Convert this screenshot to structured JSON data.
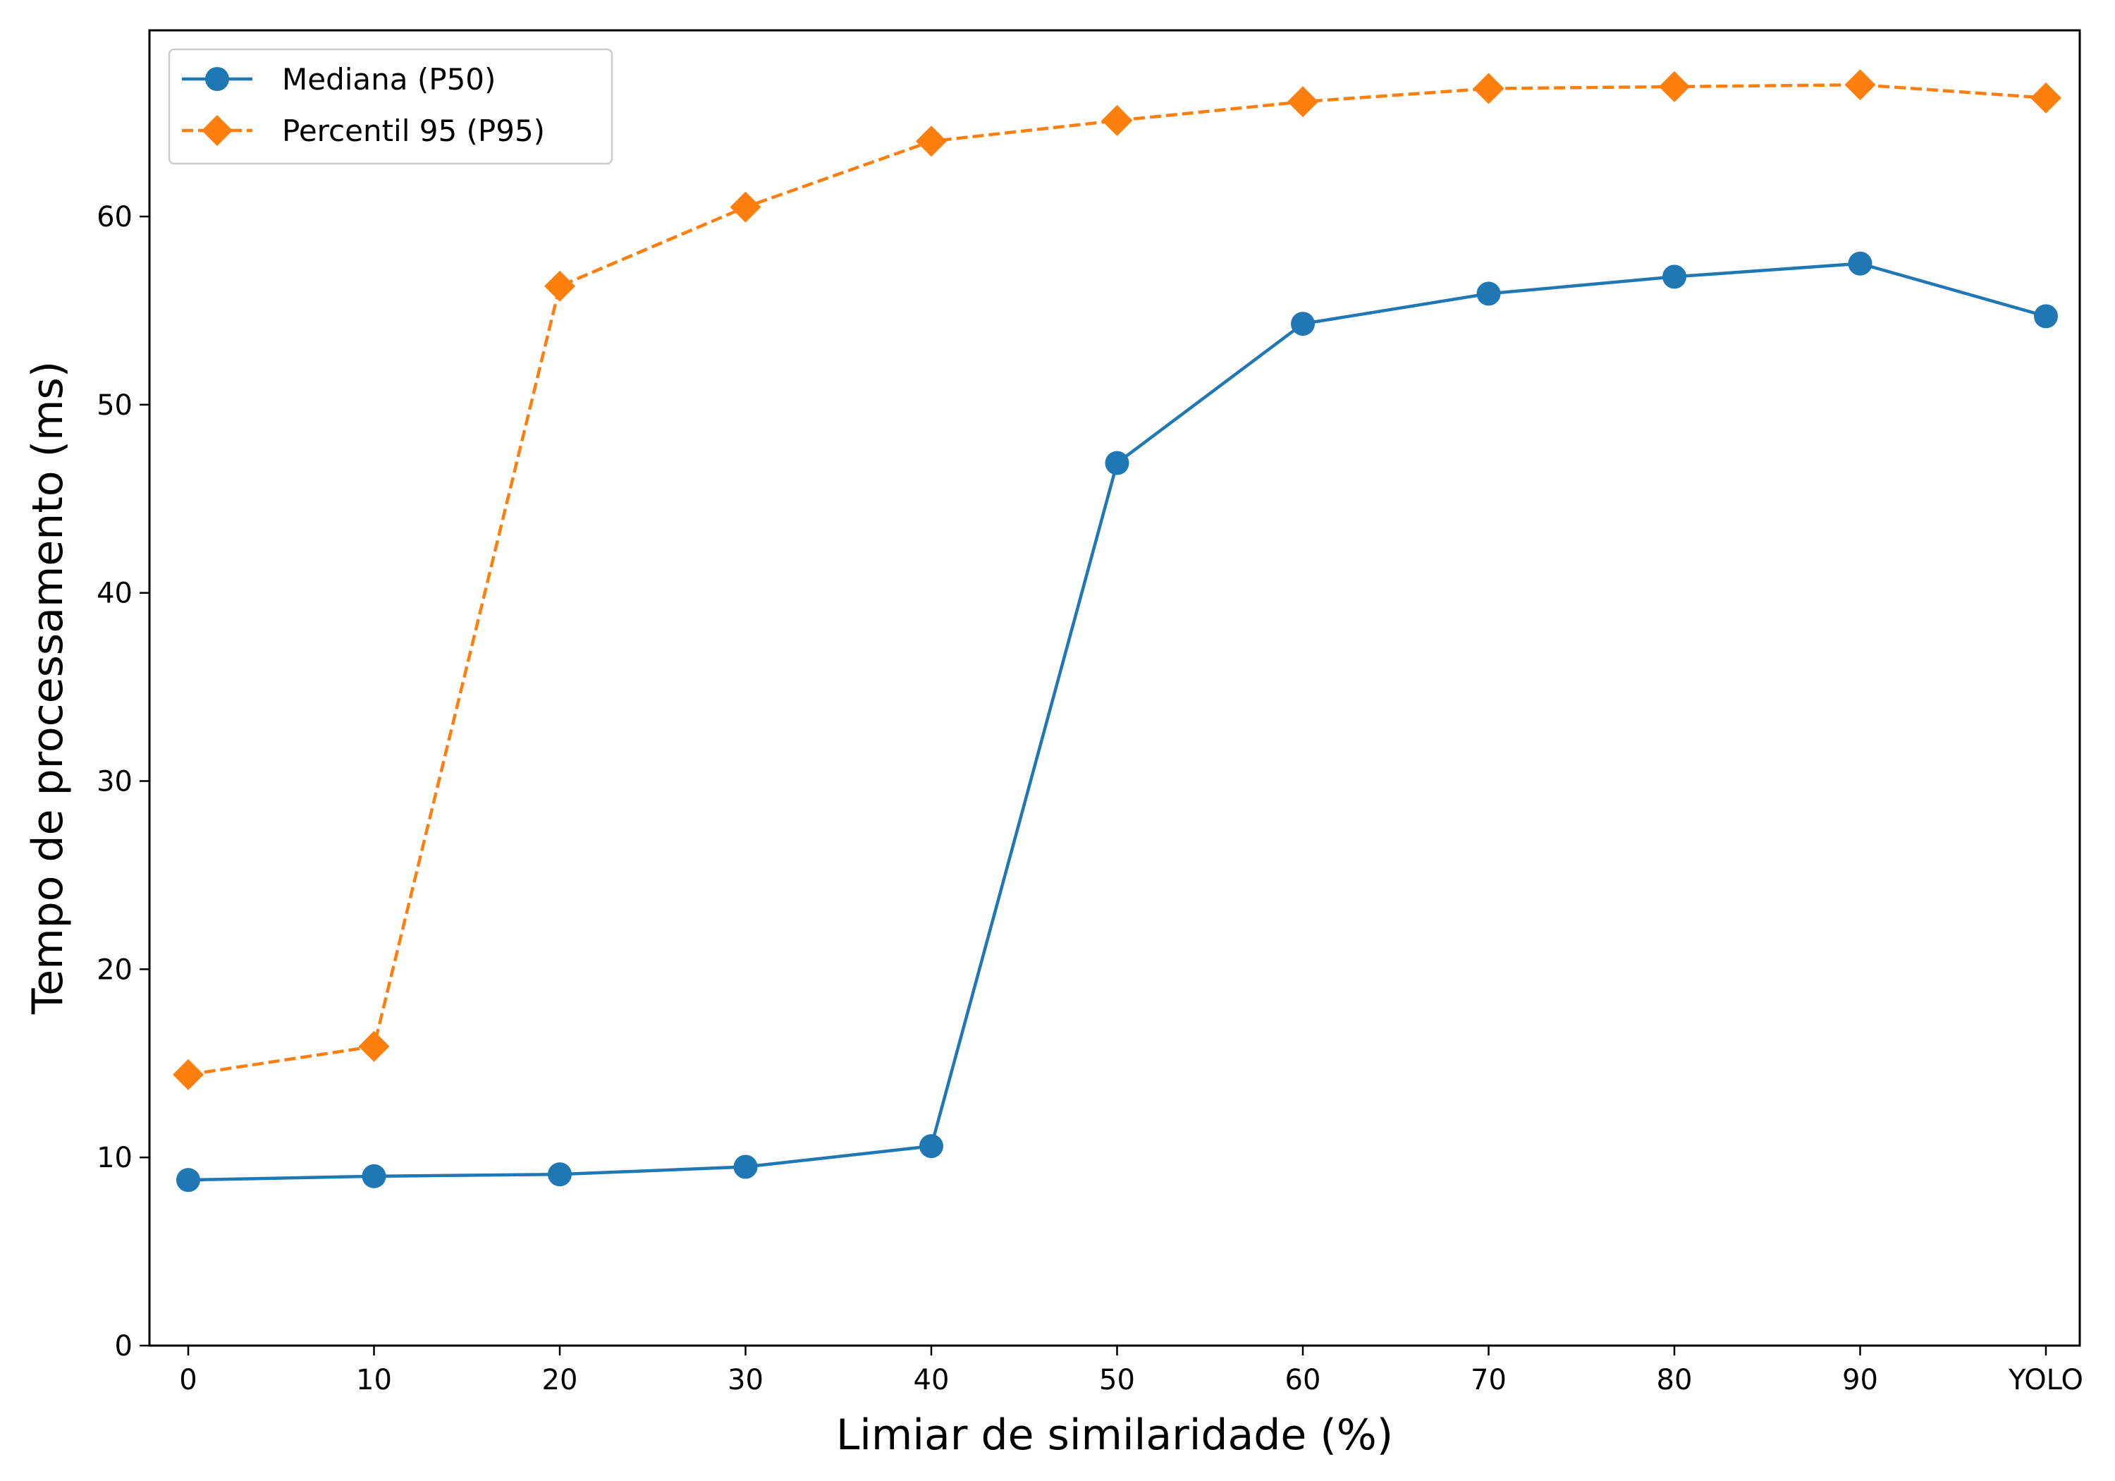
{
  "chart_data": {
    "type": "line",
    "title": "",
    "xlabel": "Limiar de similaridade (%)",
    "ylabel": "Tempo de processamento (ms)",
    "categories": [
      "0",
      "10",
      "20",
      "30",
      "40",
      "50",
      "60",
      "70",
      "80",
      "90",
      "YOLO"
    ],
    "ylim": [
      0,
      70
    ],
    "yticks": [
      0,
      10,
      20,
      30,
      40,
      50,
      60
    ],
    "grid": false,
    "legend_position": "top-left",
    "series": [
      {
        "name": "Mediana (P50)",
        "color": "#1f77b4",
        "line_style": "solid",
        "marker": "circle",
        "values": [
          8.8,
          9.0,
          9.1,
          9.5,
          10.6,
          46.9,
          54.3,
          55.9,
          56.8,
          57.5,
          54.7
        ]
      },
      {
        "name": "Percentil 95 (P95)",
        "color": "#ff7f0e",
        "line_style": "dashed",
        "marker": "diamond",
        "values": [
          14.4,
          15.9,
          56.3,
          60.5,
          64.0,
          65.1,
          66.1,
          66.8,
          66.9,
          67.0,
          66.3
        ]
      }
    ]
  }
}
